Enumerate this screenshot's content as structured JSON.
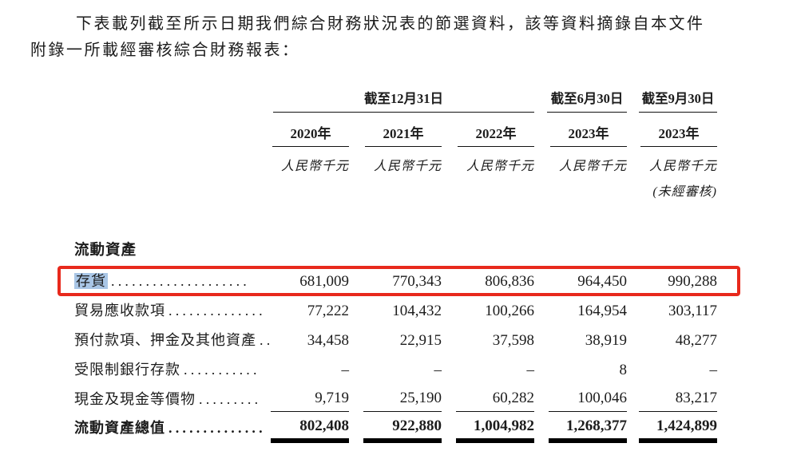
{
  "intro": {
    "line1": "下表載列截至所示日期我們綜合財務狀況表的節選資料，該等資料摘錄自本文件",
    "line2": "附錄一所載經審核綜合財務報表："
  },
  "table": {
    "period_headers": {
      "dec31": "截至12月31日",
      "jun30": "截至6月30日",
      "sep30": "截至9月30日"
    },
    "year_headers": [
      "2020年",
      "2021年",
      "2022年",
      "2023年",
      "2023年"
    ],
    "units": [
      "人民幣千元",
      "人民幣千元",
      "人民幣千元",
      "人民幣千元",
      "人民幣千元"
    ],
    "unaudited_note": "(未經審核)",
    "section_title": "流動資產",
    "rows": [
      {
        "label": "存貨",
        "dots": "....................",
        "values": [
          "681,009",
          "770,343",
          "806,836",
          "964,450",
          "990,288"
        ],
        "highlighted": true
      },
      {
        "label": "貿易應收款項",
        "dots": "..............",
        "values": [
          "77,222",
          "104,432",
          "100,266",
          "164,954",
          "303,117"
        ]
      },
      {
        "label": "預付款項、押金及其他資產",
        "dots": "..",
        "values": [
          "34,458",
          "22,915",
          "37,598",
          "38,919",
          "48,277"
        ]
      },
      {
        "label": "受限制銀行存款",
        "dots": "...........",
        "values": [
          "–",
          "–",
          "–",
          "8",
          "–"
        ]
      },
      {
        "label": "現金及現金等價物",
        "dots": ".........",
        "values": [
          "9,719",
          "25,190",
          "60,282",
          "100,046",
          "83,217"
        ]
      },
      {
        "label": "流動資產總值",
        "dots": "..............",
        "values": [
          "802,408",
          "922,880",
          "1,004,982",
          "1,268,377",
          "1,424,899"
        ],
        "total": true
      }
    ]
  },
  "annotation": {
    "box_color": "#e8291c",
    "text_highlight_color": "#a9c6e6"
  }
}
